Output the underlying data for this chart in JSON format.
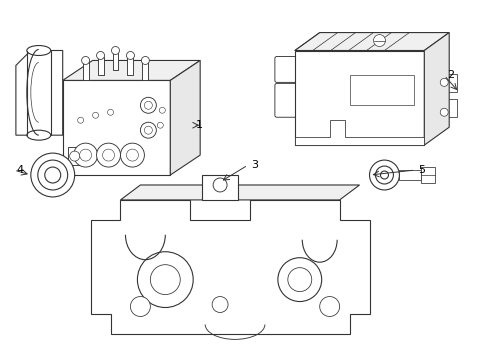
{
  "background_color": "#ffffff",
  "line_color": "#333333",
  "line_width": 0.8,
  "label_color": "#000000",
  "fig_width": 4.89,
  "fig_height": 3.6,
  "dpi": 100
}
